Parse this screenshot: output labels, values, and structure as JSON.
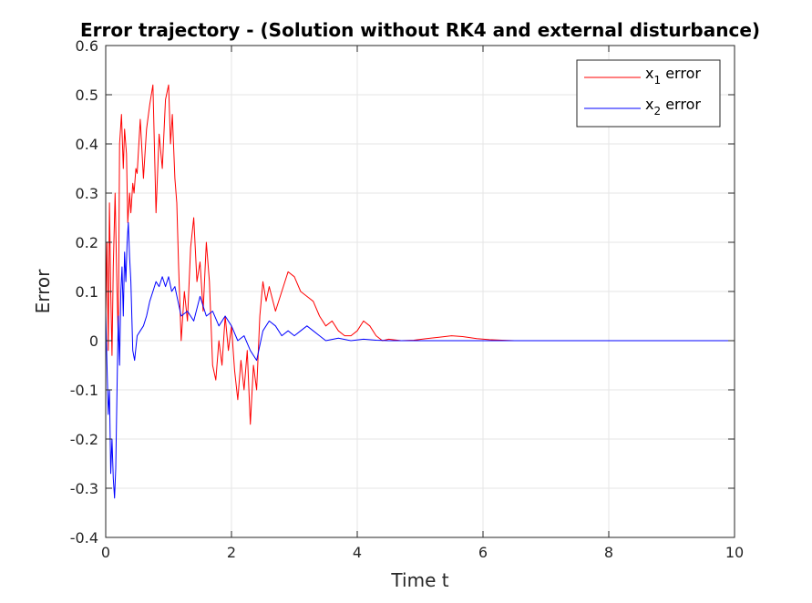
{
  "chart_data": {
    "type": "line",
    "title": "Error trajectory - (Solution without RK4 and external disturbance)",
    "xlabel": "Time t",
    "ylabel": "Error",
    "xlim": [
      0,
      10
    ],
    "ylim": [
      -0.4,
      0.6
    ],
    "xticks": [
      0,
      2,
      4,
      6,
      8,
      10
    ],
    "xtick_labels": [
      "0",
      "2",
      "4",
      "6",
      "8",
      "10"
    ],
    "yticks": [
      -0.4,
      -0.3,
      -0.2,
      -0.1,
      0,
      0.1,
      0.2,
      0.3,
      0.4,
      0.5,
      0.6
    ],
    "ytick_labels": [
      "-0.4",
      "-0.3",
      "-0.2",
      "-0.1",
      "0",
      "0.1",
      "0.2",
      "0.3",
      "0.4",
      "0.5",
      "0.6"
    ],
    "grid": true,
    "legend_position": "top-right",
    "colors": {
      "x1": "#ff0000",
      "x2": "#0000ff",
      "grid": "#e6e6e6",
      "axis": "#262626"
    },
    "series": [
      {
        "name": "x1 error",
        "legend_main": "x",
        "legend_sub": "1",
        "legend_rest": " error",
        "color": "#ff0000",
        "x": [
          0,
          0.02,
          0.04,
          0.06,
          0.08,
          0.1,
          0.12,
          0.15,
          0.18,
          0.2,
          0.22,
          0.25,
          0.28,
          0.3,
          0.33,
          0.35,
          0.38,
          0.4,
          0.43,
          0.45,
          0.48,
          0.5,
          0.55,
          0.6,
          0.65,
          0.7,
          0.75,
          0.8,
          0.85,
          0.9,
          0.95,
          1.0,
          1.03,
          1.06,
          1.1,
          1.13,
          1.16,
          1.2,
          1.25,
          1.3,
          1.35,
          1.4,
          1.45,
          1.5,
          1.55,
          1.6,
          1.65,
          1.7,
          1.75,
          1.8,
          1.85,
          1.9,
          1.95,
          2.0,
          2.05,
          2.1,
          2.15,
          2.2,
          2.25,
          2.3,
          2.35,
          2.4,
          2.45,
          2.5,
          2.55,
          2.6,
          2.7,
          2.8,
          2.9,
          3.0,
          3.1,
          3.2,
          3.3,
          3.4,
          3.5,
          3.6,
          3.7,
          3.8,
          3.9,
          4.0,
          4.1,
          4.2,
          4.3,
          4.4,
          4.5,
          4.7,
          4.9,
          5.1,
          5.3,
          5.5,
          5.7,
          5.9,
          6.1,
          6.3,
          6.5,
          7.2
        ],
        "y": [
          0.05,
          0.2,
          -0.02,
          0.28,
          0.1,
          -0.03,
          0.15,
          0.3,
          0.1,
          0.0,
          0.4,
          0.46,
          0.35,
          0.43,
          0.38,
          0.24,
          0.3,
          0.26,
          0.32,
          0.3,
          0.35,
          0.34,
          0.45,
          0.33,
          0.43,
          0.48,
          0.52,
          0.26,
          0.42,
          0.35,
          0.49,
          0.52,
          0.4,
          0.46,
          0.33,
          0.28,
          0.15,
          0.0,
          0.1,
          0.04,
          0.19,
          0.25,
          0.12,
          0.16,
          0.06,
          0.2,
          0.12,
          -0.05,
          -0.08,
          0.0,
          -0.05,
          0.05,
          -0.02,
          0.03,
          -0.06,
          -0.12,
          -0.04,
          -0.1,
          -0.02,
          -0.17,
          -0.05,
          -0.1,
          0.05,
          0.12,
          0.08,
          0.11,
          0.06,
          0.1,
          0.14,
          0.13,
          0.1,
          0.09,
          0.08,
          0.05,
          0.03,
          0.04,
          0.02,
          0.01,
          0.01,
          0.02,
          0.04,
          0.03,
          0.01,
          0.0,
          0.003,
          0.0,
          0.001,
          0.004,
          0.007,
          0.01,
          0.008,
          0.004,
          0.002,
          0.001,
          0.0,
          0.0
        ]
      },
      {
        "name": "x2 error",
        "legend_main": "x",
        "legend_sub": "2",
        "legend_rest": " error",
        "color": "#0000ff",
        "x": [
          0,
          0.02,
          0.04,
          0.06,
          0.08,
          0.1,
          0.12,
          0.14,
          0.16,
          0.18,
          0.2,
          0.22,
          0.24,
          0.26,
          0.28,
          0.3,
          0.32,
          0.34,
          0.36,
          0.38,
          0.4,
          0.43,
          0.46,
          0.5,
          0.55,
          0.6,
          0.65,
          0.7,
          0.75,
          0.8,
          0.85,
          0.9,
          0.95,
          1.0,
          1.05,
          1.1,
          1.15,
          1.2,
          1.3,
          1.4,
          1.5,
          1.6,
          1.7,
          1.8,
          1.9,
          2.0,
          2.1,
          2.2,
          2.3,
          2.4,
          2.5,
          2.6,
          2.7,
          2.8,
          2.9,
          3.0,
          3.1,
          3.2,
          3.3,
          3.4,
          3.5,
          3.7,
          3.9,
          4.1,
          4.3,
          4.5,
          4.7,
          5.0,
          5.5,
          6.0,
          7.0,
          8.0,
          9.0,
          10.0
        ],
        "y": [
          0.06,
          -0.05,
          -0.15,
          -0.1,
          -0.27,
          -0.2,
          -0.28,
          -0.32,
          -0.26,
          -0.1,
          0.05,
          -0.05,
          0.1,
          0.15,
          0.05,
          0.18,
          0.12,
          0.2,
          0.24,
          0.17,
          0.12,
          -0.02,
          -0.04,
          0.01,
          0.02,
          0.03,
          0.05,
          0.08,
          0.1,
          0.12,
          0.11,
          0.13,
          0.11,
          0.13,
          0.1,
          0.11,
          0.08,
          0.05,
          0.06,
          0.04,
          0.09,
          0.05,
          0.06,
          0.03,
          0.05,
          0.03,
          0.0,
          0.01,
          -0.02,
          -0.04,
          0.02,
          0.04,
          0.03,
          0.01,
          0.02,
          0.01,
          0.02,
          0.03,
          0.02,
          0.01,
          0.0,
          0.005,
          0.0,
          0.003,
          0.001,
          0.0,
          0.0,
          0.0,
          0.0,
          0.0,
          0.0,
          0.0,
          0.0,
          0.0
        ]
      }
    ]
  }
}
